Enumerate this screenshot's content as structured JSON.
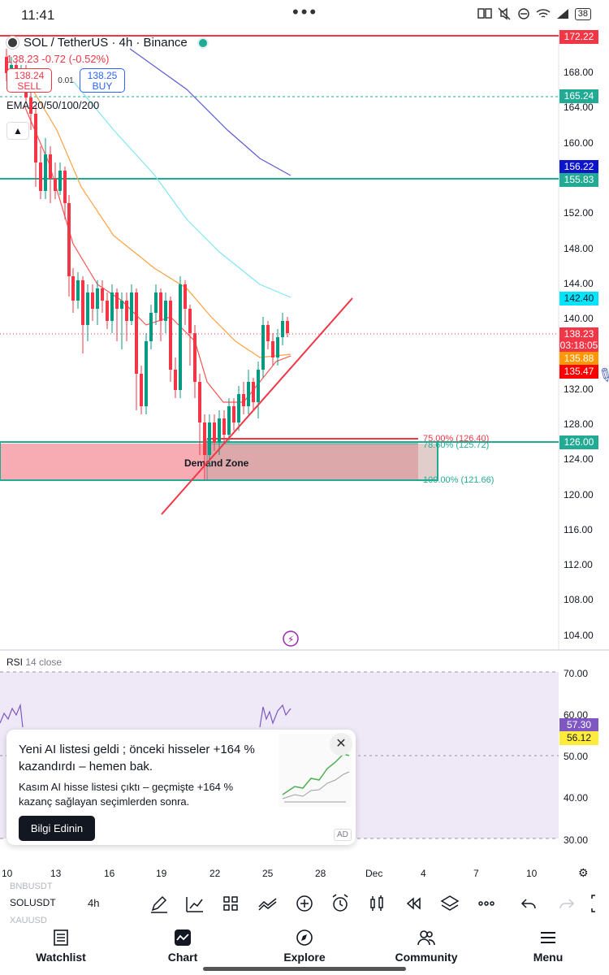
{
  "status_bar": {
    "time": "11:41",
    "dots": "•••",
    "battery": "38"
  },
  "legend": {
    "symbol": "SOL / TetherUS · 4h · Binance",
    "price_change": "138.23  -0.72 (-0.52%)",
    "sell_price": "138.24",
    "sell_label": "SELL",
    "spread": "0.01",
    "buy_price": "138.25",
    "buy_label": "BUY",
    "indicator": "EMA 20/50/100/200",
    "collapse_icon": "chevron-up-icon"
  },
  "price_axis": {
    "ticks": [
      "168.00",
      "164.00",
      "160.00",
      "152.00",
      "148.00",
      "144.00",
      "140.00",
      "132.00",
      "128.00",
      "124.00",
      "120.00",
      "116.00",
      "112.00",
      "108.00",
      "104.00"
    ],
    "labels": [
      {
        "value": "172.22",
        "color": "#f23645"
      },
      {
        "value": "165.24",
        "color": "#22ab94"
      },
      {
        "value": "156.22",
        "color": "#0d14c9"
      },
      {
        "value": "155.83",
        "color": "#22ab94"
      },
      {
        "value": "142.40",
        "color": "#00e5ff"
      },
      {
        "value": "138.23",
        "color": "#f23645"
      },
      {
        "value": "03:18:05",
        "color": "#f23645"
      },
      {
        "value": "135.88",
        "color": "#ff9800"
      },
      {
        "value": "135.47",
        "color": "#ff0000"
      },
      {
        "value": "126.00",
        "color": "#22ab94"
      }
    ]
  },
  "drawings": {
    "zone_label": "Demand Zone",
    "fib_75": "75.00% (126.40)",
    "fib_786": "78.60% (125.72)",
    "fib_100": "100.00% (121.66)"
  },
  "rsi": {
    "title": "RSI",
    "params": "14 close",
    "ticks": [
      "70.00",
      "60.00",
      "50.00",
      "40.00",
      "30.00"
    ],
    "value_1": "57.30",
    "value_2": "56.12"
  },
  "ad": {
    "title": "Yeni AI listesi geldi ; önceki hisseler +164 % kazandırdı – hemen bak.",
    "body": "Kasım AI hisse listesi çıktı – geçmişte +164 % kazanç sağlayan seçimlerden sonra.",
    "cta": "Bilgi Edinin",
    "tag": "AD",
    "close": "✕"
  },
  "time_axis": {
    "labels": [
      "10",
      "13",
      "16",
      "19",
      "22",
      "25",
      "28",
      "Dec",
      "4",
      "7",
      "10"
    ]
  },
  "toolbar": {
    "symbol_prev": "BNBUSDT",
    "symbol": "SOLUSDT",
    "symbol_next": "XAUUSD",
    "interval": "4h",
    "icons": [
      "draw-icon",
      "indicators-icon",
      "templates-icon",
      "compare-icon",
      "add-icon",
      "alert-icon",
      "chart-type-icon",
      "replay-icon",
      "layers-icon",
      "more-icon",
      "undo-icon",
      "redo-icon",
      "fullscreen-icon"
    ]
  },
  "nav": {
    "items": [
      {
        "label": "Watchlist",
        "icon": "watchlist-icon"
      },
      {
        "label": "Chart",
        "icon": "chart-icon"
      },
      {
        "label": "Explore",
        "icon": "compass-icon"
      },
      {
        "label": "Community",
        "icon": "community-icon"
      },
      {
        "label": "Menu",
        "icon": "menu-icon"
      }
    ]
  },
  "chart_data": {
    "type": "line",
    "title": "SOL / TetherUS · 4h · Binance",
    "ylim": [
      100,
      174
    ],
    "x_ticks": [
      "10",
      "13",
      "16",
      "19",
      "22",
      "25",
      "28",
      "Dec",
      "4",
      "7",
      "10"
    ],
    "series": [
      {
        "name": "EMA 200",
        "color": "#5b5bd6"
      },
      {
        "name": "EMA 100",
        "color": "#7fe6f5"
      },
      {
        "name": "EMA 50",
        "color": "#ffa040"
      },
      {
        "name": "EMA 20",
        "color": "#ff5252"
      }
    ]
  }
}
